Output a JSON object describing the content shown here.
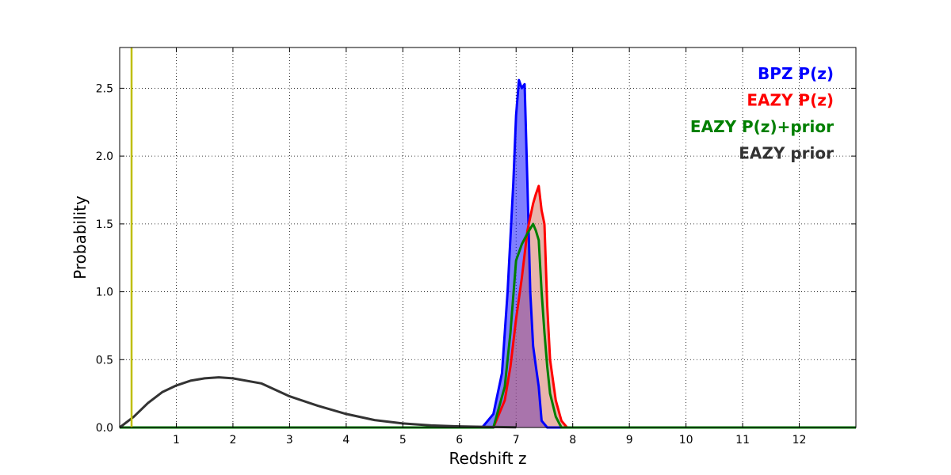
{
  "chart_data": {
    "type": "line",
    "title": "",
    "xlabel": "Redshift z",
    "ylabel": "Probability",
    "xlim": [
      0,
      13
    ],
    "ylim": [
      0,
      2.8
    ],
    "xticks": [
      1,
      2,
      3,
      4,
      5,
      6,
      7,
      8,
      9,
      10,
      11,
      12
    ],
    "yticks": [
      0.0,
      0.5,
      1.0,
      1.5,
      2.0,
      2.5
    ],
    "ytick_labels": [
      "0.0",
      "0.5",
      "1.0",
      "1.5",
      "2.0",
      "2.5"
    ],
    "grid": true,
    "legend_position": "top-right",
    "vertical_line": {
      "x": 0.21,
      "color": "#bfbf00"
    },
    "series": [
      {
        "name": "BPZ P(z)",
        "color": "#0000ff",
        "fill": "#0000ff",
        "fill_opacity": 0.5,
        "x": [
          0,
          6.4,
          6.6,
          6.75,
          6.85,
          6.95,
          7.0,
          7.05,
          7.1,
          7.15,
          7.2,
          7.25,
          7.3,
          7.35,
          7.4,
          7.45,
          7.55,
          7.7,
          12.0,
          13.0
        ],
        "y": [
          0,
          0,
          0.1,
          0.4,
          1.0,
          1.8,
          2.3,
          2.56,
          2.5,
          2.53,
          1.8,
          1.0,
          0.6,
          0.45,
          0.3,
          0.05,
          0.0,
          0,
          0,
          0
        ]
      },
      {
        "name": "EAZY P(z)",
        "color": "#ff0000",
        "fill": "#d46a5a",
        "fill_opacity": 0.5,
        "x": [
          0,
          6.6,
          6.8,
          6.9,
          7.0,
          7.1,
          7.2,
          7.3,
          7.35,
          7.4,
          7.45,
          7.5,
          7.55,
          7.6,
          7.7,
          7.8,
          7.9,
          13.0
        ],
        "y": [
          0,
          0,
          0.2,
          0.45,
          0.8,
          1.1,
          1.45,
          1.65,
          1.72,
          1.78,
          1.6,
          1.5,
          0.9,
          0.5,
          0.2,
          0.05,
          0,
          0
        ]
      },
      {
        "name": "EAZY P(z)+prior",
        "color": "#007f00",
        "fill": "none",
        "fill_opacity": 0,
        "x": [
          0,
          6.6,
          6.8,
          6.9,
          7.0,
          7.1,
          7.2,
          7.3,
          7.35,
          7.4,
          7.45,
          7.5,
          7.55,
          7.6,
          7.7,
          7.8,
          13.0
        ],
        "y": [
          0,
          0,
          0.3,
          0.7,
          1.23,
          1.35,
          1.43,
          1.5,
          1.45,
          1.38,
          1.0,
          0.7,
          0.45,
          0.25,
          0.08,
          0,
          0
        ]
      },
      {
        "name": "EAZY prior",
        "color": "#333333",
        "fill": "none",
        "fill_opacity": 0,
        "x": [
          0,
          0.25,
          0.5,
          0.75,
          1.0,
          1.25,
          1.5,
          1.75,
          2.0,
          2.5,
          3.0,
          3.5,
          4.0,
          4.5,
          5.0,
          5.5,
          6.0,
          6.5,
          7.0
        ],
        "y": [
          0.0,
          0.08,
          0.18,
          0.26,
          0.31,
          0.345,
          0.362,
          0.37,
          0.362,
          0.325,
          0.23,
          0.16,
          0.1,
          0.055,
          0.03,
          0.015,
          0.008,
          0.004,
          0.002
        ]
      }
    ]
  }
}
